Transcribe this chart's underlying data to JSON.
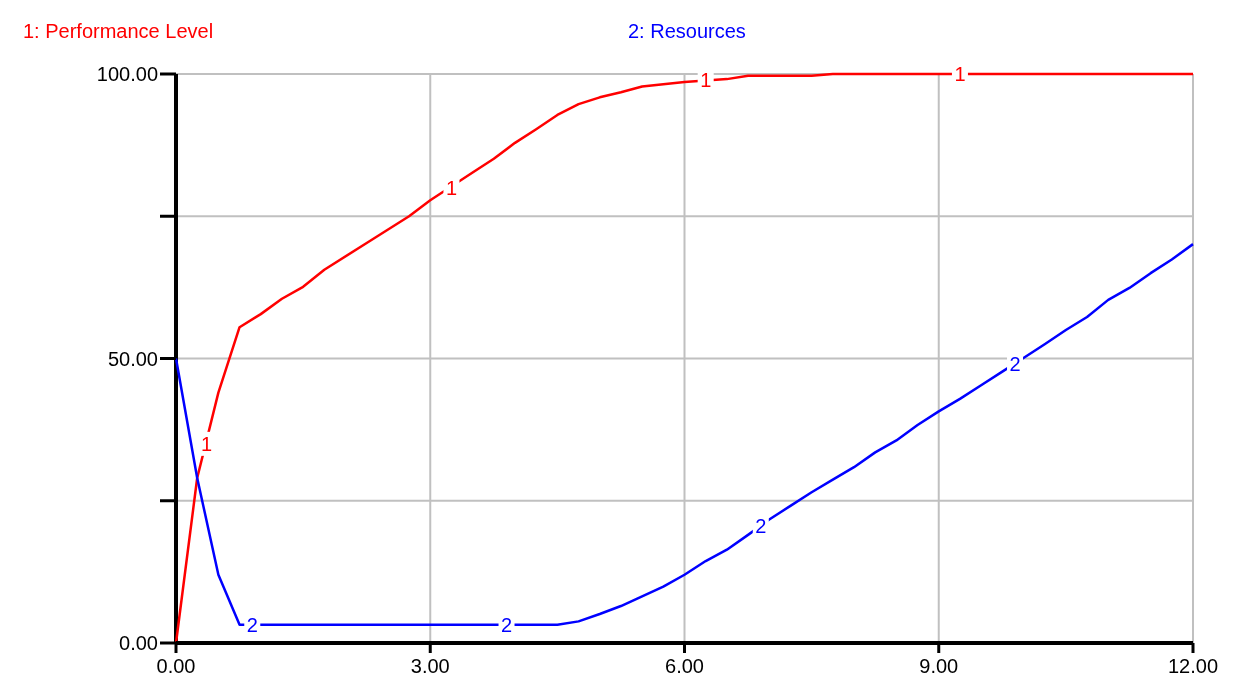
{
  "chart_data": {
    "type": "line",
    "xlim": [
      0,
      12
    ],
    "ylim": [
      0,
      100
    ],
    "xticks": [
      {
        "value": 0,
        "label": "0.00"
      },
      {
        "value": 3,
        "label": "3.00"
      },
      {
        "value": 6,
        "label": "6.00"
      },
      {
        "value": 9,
        "label": "9.00"
      },
      {
        "value": 12,
        "label": "12.00"
      }
    ],
    "yticks": [
      {
        "value": 0,
        "label": "0.00"
      },
      {
        "value": 25,
        "label": null
      },
      {
        "value": 50,
        "label": "50.00"
      },
      {
        "value": 75,
        "label": null
      },
      {
        "value": 100,
        "label": "100.00"
      }
    ],
    "grid": true,
    "line_style": "solid",
    "annotations": [
      {
        "text": "1",
        "x": 0.36,
        "y": 35
      },
      {
        "text": "1",
        "x": 3.25,
        "y": 80
      },
      {
        "text": "1",
        "x": 6.25,
        "y": 99
      },
      {
        "text": "1",
        "x": 9.25,
        "y": 100
      },
      {
        "text": "2",
        "x": 0.9,
        "y": 3.2
      },
      {
        "text": "2",
        "x": 3.9,
        "y": 3.2
      },
      {
        "text": "2",
        "x": 6.9,
        "y": 20.5
      },
      {
        "text": "2",
        "x": 9.9,
        "y": 49
      }
    ],
    "series": [
      {
        "name": "1: Performance Level",
        "color": "#ff0000",
        "x": [
          0,
          0.25,
          0.5,
          0.75,
          1,
          1.25,
          1.5,
          1.75,
          2.25,
          2.75,
          3,
          3.5,
          3.75,
          4,
          4.25,
          4.5,
          4.75,
          5,
          5.25,
          5.5,
          6,
          6.5,
          6.75,
          7.5,
          7.75,
          12
        ],
        "values": [
          0,
          29,
          44,
          55.5,
          57.8,
          60.5,
          62.6,
          65.6,
          70.3,
          75,
          77.8,
          82.7,
          85.1,
          87.9,
          90.3,
          92.8,
          94.7,
          95.9,
          96.8,
          97.8,
          98.6,
          99.1,
          99.7,
          99.7,
          100,
          100
        ]
      },
      {
        "name": "2: Resources",
        "color": "#0000ff",
        "x": [
          0,
          0.25,
          0.5,
          0.75,
          4.5,
          4.75,
          5,
          5.25,
          5.5,
          5.75,
          6,
          6.25,
          6.5,
          6.75,
          7,
          7.25,
          7.5,
          7.75,
          8,
          8.25,
          8.5,
          8.75,
          9,
          9.25,
          9.5,
          9.75,
          10,
          10.25,
          10.5,
          10.75,
          11,
          11.25,
          11.5,
          11.75,
          12
        ],
        "values": [
          50,
          29,
          12,
          3.2,
          3.2,
          3.8,
          5.1,
          6.5,
          8.2,
          9.9,
          12,
          14.4,
          16.4,
          19,
          21.7,
          24.1,
          26.5,
          28.7,
          30.9,
          33.5,
          35.6,
          38.3,
          40.7,
          42.9,
          45.3,
          47.7,
          50.1,
          52.5,
          55,
          57.3,
          60.3,
          62.4,
          65,
          67.4,
          70.1
        ]
      }
    ]
  }
}
